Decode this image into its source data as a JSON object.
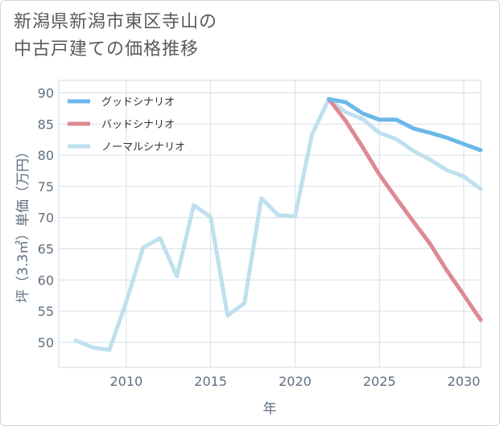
{
  "chart_data": {
    "type": "line",
    "title": "新潟県新潟市東区寺山の\n中古戸建ての価格推移",
    "xlabel": "年",
    "ylabel": "坪（3.3㎡）単価（万円）",
    "xlim": [
      2006,
      2031
    ],
    "ylim": [
      46,
      92
    ],
    "x_ticks": [
      2010,
      2015,
      2020,
      2025,
      2030
    ],
    "y_ticks": [
      50,
      55,
      60,
      65,
      70,
      75,
      80,
      85,
      90
    ],
    "grid": true,
    "legend_position": "top-left",
    "series": [
      {
        "name": "グッドシナリオ",
        "color": "#6ab8ea",
        "x": [
          2022,
          2023,
          2024,
          2025,
          2026,
          2027,
          2028,
          2029,
          2030,
          2031
        ],
        "values": [
          89.0,
          88.5,
          86.7,
          85.7,
          85.7,
          84.3,
          83.6,
          82.8,
          81.8,
          80.8
        ]
      },
      {
        "name": "バッドシナリオ",
        "color": "#dd8a93",
        "x": [
          2022,
          2023,
          2024,
          2025,
          2026,
          2027,
          2028,
          2029,
          2030,
          2031
        ],
        "values": [
          89.0,
          85.5,
          81.3,
          76.9,
          73.1,
          69.4,
          65.8,
          61.5,
          57.6,
          53.6
        ]
      },
      {
        "name": "ノーマルシナリオ",
        "color": "#bfe0ee",
        "x": [
          2007,
          2008,
          2009,
          2010,
          2011,
          2012,
          2013,
          2014,
          2015,
          2016,
          2017,
          2018,
          2019,
          2020,
          2021,
          2022,
          2023,
          2024,
          2025,
          2026,
          2027,
          2028,
          2029,
          2030,
          2031
        ],
        "values": [
          50.3,
          49.2,
          48.8,
          56.5,
          65.2,
          66.7,
          60.6,
          72.0,
          70.1,
          54.3,
          56.3,
          73.1,
          70.4,
          70.2,
          83.3,
          89.0,
          86.9,
          85.8,
          83.6,
          82.6,
          80.7,
          79.3,
          77.6,
          76.6,
          74.6
        ]
      }
    ]
  }
}
